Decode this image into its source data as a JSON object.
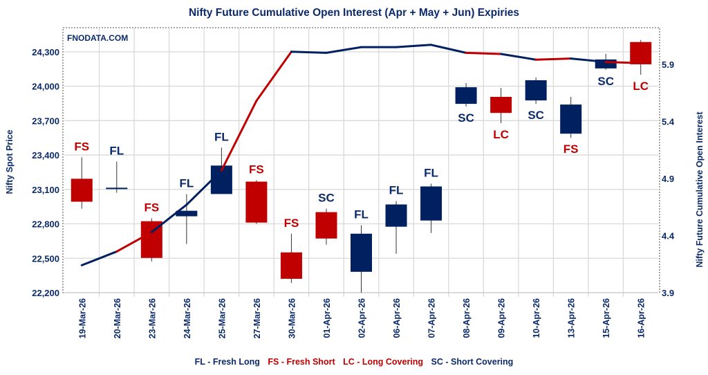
{
  "chart_data": {
    "type": "candlestick+line",
    "title": "Nifty Future Cumulative Open Interest (Apr + May + Jun) Expiries",
    "watermark": "FNODATA.COM",
    "ylabel": "Nifty Spot Price",
    "y2label": "Nifty Future Cumulative Open Interest",
    "ylim": [
      22200,
      24480
    ],
    "y2lim": [
      3.9,
      6.19
    ],
    "yticks": [
      "22,200",
      "22,500",
      "22,800",
      "23,100",
      "23,400",
      "23,700",
      "24,000",
      "24,300"
    ],
    "y2ticks": [
      "3.9",
      "4.4",
      "4.9",
      "5.4",
      "5.9"
    ],
    "grid": true,
    "legend_position": "bottom",
    "categories": [
      "19-Mar-26",
      "20-Mar-26",
      "23-Mar-26",
      "24-Mar-26",
      "25-Mar-26",
      "27-Mar-26",
      "30-Mar-26",
      "01-Apr-26",
      "02-Apr-26",
      "06-Apr-26",
      "07-Apr-26",
      "08-Apr-26",
      "09-Apr-26",
      "10-Apr-26",
      "13-Apr-26",
      "15-Apr-26",
      "16-Apr-26"
    ],
    "ohlc": [
      [
        23193,
        23380,
        22932,
        22993
      ],
      [
        23105,
        23344,
        23071,
        23115
      ],
      [
        22823,
        22848,
        22472,
        22503
      ],
      [
        22866,
        23060,
        22624,
        22914
      ],
      [
        23060,
        23465,
        23060,
        23308
      ],
      [
        23168,
        23180,
        22799,
        22811
      ],
      [
        22551,
        22714,
        22285,
        22321
      ],
      [
        22902,
        22932,
        22618,
        22672
      ],
      [
        22382,
        22787,
        22200,
        22714
      ],
      [
        22775,
        22999,
        22539,
        22969
      ],
      [
        22829,
        23150,
        22720,
        23126
      ],
      [
        23846,
        24028,
        23822,
        23991
      ],
      [
        23907,
        23985,
        23677,
        23767
      ],
      [
        23876,
        24076,
        23846,
        24052
      ],
      [
        23586,
        23907,
        23550,
        23840
      ],
      [
        24155,
        24282,
        24143,
        24233
      ],
      [
        24385,
        24403,
        24100,
        24191
      ]
    ],
    "candle_colors": [
      "red",
      "blue",
      "red",
      "blue",
      "blue",
      "red",
      "red",
      "red",
      "blue",
      "blue",
      "blue",
      "blue",
      "red",
      "blue",
      "blue",
      "blue",
      "red"
    ],
    "open_interest": [
      4.14,
      4.26,
      4.43,
      4.67,
      4.97,
      5.58,
      6.01,
      6.0,
      6.05,
      6.05,
      6.07,
      6.0,
      5.99,
      5.94,
      5.95,
      5.92,
      5.91
    ],
    "signals": [
      "FS",
      "FL",
      "FS",
      "FL",
      "FL",
      "FS",
      "FS",
      "SC",
      "FL",
      "FL",
      "FL",
      "SC",
      "LC",
      "SC",
      "FS",
      "SC",
      "LC"
    ],
    "signal_position": [
      "above",
      "above",
      "above",
      "above",
      "above",
      "above",
      "above",
      "above",
      "above",
      "above",
      "above",
      "below",
      "below",
      "below",
      "below",
      "below",
      "below"
    ],
    "legend": [
      {
        "code": "FL",
        "text": "FL - Fresh Long",
        "color": "#0b2a6b"
      },
      {
        "code": "FS",
        "text": "FS - Fresh Short",
        "color": "#c00000"
      },
      {
        "code": "LC",
        "text": "LC - Long Covering",
        "color": "#c00000"
      },
      {
        "code": "SC",
        "text": "SC - Short Covering",
        "color": "#0b2a6b"
      }
    ],
    "colors": {
      "red": "#c00000",
      "blue": "#002060",
      "text": "#0b2a6b"
    }
  }
}
